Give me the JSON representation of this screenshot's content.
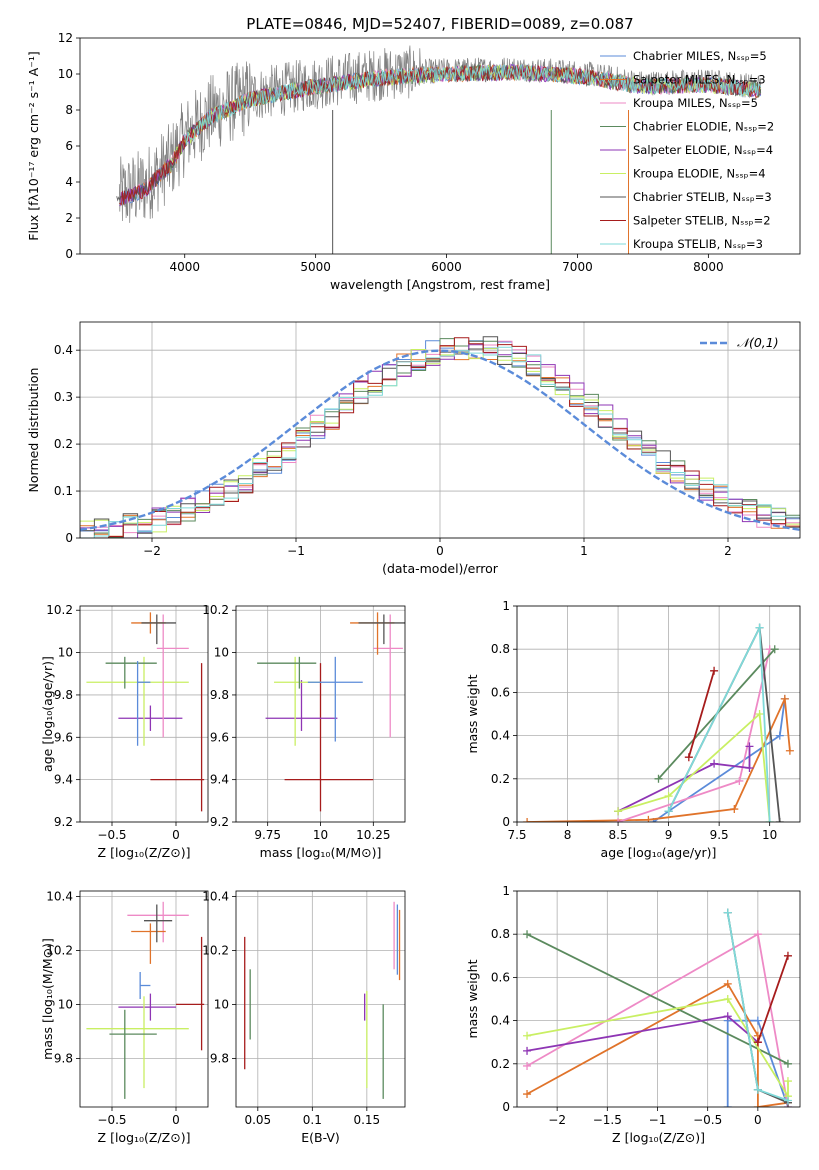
{
  "figure": {
    "title": "PLATE=0846, MJD=52407, FIBERID=0089, z=0.087",
    "series_colors": [
      "#5b8bd9",
      "#e0732a",
      "#ee8ac6",
      "#5b8a5e",
      "#8e35b4",
      "#c9ef63",
      "#555555",
      "#a61c1c",
      "#7fd9d9"
    ],
    "axis_labels": {
      "flux": "Flux [fλ10⁻¹⁷ erg cm⁻² s⁻¹ A⁻¹]",
      "wavelength": "wavelength [Angstrom, rest frame]",
      "normed": "Normed distribution",
      "resid": "(data-model)/error",
      "age": "age  [log₁₀(age/yr)]",
      "Z": "Z [log₁₀(Z/Z⊙)]",
      "mass": "mass [log₁₀(M/M⊙)]",
      "mass_weight": "mass weight",
      "ebv": "E(B-V)"
    }
  },
  "chart_data": [
    {
      "type": "line",
      "panel": "spectrum",
      "title": "PLATE=0846, MJD=52407, FIBERID=0089, z=0.087",
      "xlabel": "wavelength [Angstrom, rest frame]",
      "ylabel": "Flux [fλ10⁻¹⁷ erg cm⁻² s⁻¹ A⁻¹]",
      "xlim": [
        3200,
        8700
      ],
      "ylim": [
        0,
        12
      ],
      "xticks": [
        4000,
        5000,
        6000,
        7000,
        8000
      ],
      "yticks": [
        0,
        2,
        4,
        6,
        8,
        10,
        12
      ],
      "grid": false,
      "legend": "right",
      "continuum": {
        "x": [
          3500,
          3700,
          3900,
          4000,
          4200,
          4500,
          5000,
          5500,
          6000,
          6500,
          7000,
          7500,
          8000,
          8400
        ],
        "y": [
          3.2,
          3.8,
          5.2,
          6.5,
          7.8,
          8.8,
          9.5,
          10.0,
          10.2,
          10.3,
          10.1,
          9.5,
          9.6,
          9.3
        ]
      },
      "series": [
        {
          "name": "Chabrier MILES, N_SSP=5"
        },
        {
          "name": "Salpeter MILES, N_SSP=3"
        },
        {
          "name": "Kroupa MILES, N_SSP=5"
        },
        {
          "name": "Chabrier ELODIE, N_SSP=2"
        },
        {
          "name": "Salpeter ELODIE, N_SSP=4"
        },
        {
          "name": "Kroupa ELODIE, N_SSP=4"
        },
        {
          "name": "Chabrier STELIB, N_SSP=3"
        },
        {
          "name": "Salpeter STELIB, N_SSP=2"
        },
        {
          "name": "Kroupa STELIB, N_SSP=3"
        }
      ]
    },
    {
      "type": "histogram",
      "panel": "residuals",
      "xlabel": "(data-model)/error",
      "ylabel": "Normed distribution",
      "xlim": [
        -2.5,
        2.5
      ],
      "ylim": [
        0,
        0.46
      ],
      "xticks": [
        -2,
        -1,
        0,
        1,
        2
      ],
      "yticks": [
        0.0,
        0.1,
        0.2,
        0.3,
        0.4
      ],
      "grid": true,
      "legend": "top-right",
      "reference_curve": {
        "name": "𝒩(0,1)",
        "mean": 0,
        "sigma": 1
      },
      "bin_width": 0.1,
      "bin_peak_shift": 0.2
    },
    {
      "type": "errorbar",
      "panel": "age_vs_Z",
      "xlabel": "Z [log₁₀(Z/Z⊙)]",
      "ylabel": "age  [log₁₀(age/yr)]",
      "xlim": [
        -0.75,
        0.25
      ],
      "ylim": [
        9.2,
        10.22
      ],
      "xticks": [
        -0.5,
        0.0
      ],
      "yticks": [
        9.2,
        9.4,
        9.6,
        9.8,
        10.0,
        10.2
      ],
      "points": [
        {
          "x": 0.2,
          "y": 9.4,
          "xerr": [
            0.4,
            0.02
          ],
          "yerr": [
            0.15,
            0.55
          ],
          "c": 7
        },
        {
          "x": -0.2,
          "y": 9.69,
          "xerr": [
            0.25,
            0.25
          ],
          "yerr": [
            0.06,
            0.06
          ],
          "c": 4
        },
        {
          "x": -0.25,
          "y": 9.86,
          "xerr": [
            0.45,
            0.35
          ],
          "yerr": [
            0.3,
            0.12
          ],
          "c": 5
        },
        {
          "x": -0.4,
          "y": 9.95,
          "xerr": [
            0.15,
            0.25
          ],
          "yerr": [
            0.12,
            0.03
          ],
          "c": 3
        },
        {
          "x": -0.3,
          "y": 9.86,
          "xerr": [
            0.0,
            0.1
          ],
          "yerr": [
            0.3,
            0.1
          ],
          "c": 0
        },
        {
          "x": -0.1,
          "y": 10.02,
          "xerr": [
            0.05,
            0.2
          ],
          "yerr": [
            0.42,
            0.16
          ],
          "c": 2
        },
        {
          "x": -0.2,
          "y": 10.14,
          "xerr": [
            0.15,
            0.12
          ],
          "yerr": [
            0.05,
            0.05
          ],
          "c": 1
        },
        {
          "x": -0.15,
          "y": 10.14,
          "xerr": [
            0.12,
            0.15
          ],
          "yerr": [
            0.1,
            0.04
          ],
          "c": 6
        }
      ]
    },
    {
      "type": "errorbar",
      "panel": "age_vs_mass",
      "xlabel": "mass [log₁₀(M/M⊙)]",
      "ylabel": "",
      "xlim": [
        9.6,
        10.4
      ],
      "ylim": [
        9.2,
        10.22
      ],
      "xticks": [
        9.75,
        10.0,
        10.25
      ],
      "yticks": [
        9.2,
        9.4,
        9.6,
        9.8,
        10.0,
        10.2
      ],
      "points": [
        {
          "x": 10.0,
          "y": 9.4,
          "xerr": [
            0.17,
            0.25
          ],
          "yerr": [
            0.15,
            0.55
          ],
          "c": 7
        },
        {
          "x": 9.91,
          "y": 9.69,
          "xerr": [
            0.17,
            0.17
          ],
          "yerr": [
            0.06,
            0.18
          ],
          "c": 4
        },
        {
          "x": 9.88,
          "y": 9.86,
          "xerr": [
            0.1,
            0.12
          ],
          "yerr": [
            0.3,
            0.12
          ],
          "c": 5
        },
        {
          "x": 9.9,
          "y": 9.95,
          "xerr": [
            0.2,
            0.08
          ],
          "yerr": [
            0.12,
            0.03
          ],
          "c": 3
        },
        {
          "x": 10.07,
          "y": 9.86,
          "xerr": [
            0.13,
            0.13
          ],
          "yerr": [
            0.28,
            0.12
          ],
          "c": 0
        },
        {
          "x": 10.33,
          "y": 10.02,
          "xerr": [
            0.08,
            0.06
          ],
          "yerr": [
            0.42,
            0.16
          ],
          "c": 2
        },
        {
          "x": 10.27,
          "y": 10.14,
          "xerr": [
            0.13,
            0.08
          ],
          "yerr": [
            0.15,
            0.05
          ],
          "c": 1
        },
        {
          "x": 10.3,
          "y": 10.14,
          "xerr": [
            0.12,
            0.1
          ],
          "yerr": [
            0.1,
            0.04
          ],
          "c": 6
        }
      ]
    },
    {
      "type": "line",
      "panel": "massweight_vs_age",
      "xlabel": "age  [log₁₀(age/yr)]",
      "ylabel": "mass weight",
      "xlim": [
        7.5,
        10.3
      ],
      "ylim": [
        0,
        1.0
      ],
      "xticks": [
        7.5,
        8.0,
        8.5,
        9.0,
        9.5,
        10.0
      ],
      "yticks": [
        0.0,
        0.2,
        0.4,
        0.6,
        0.8,
        1.0
      ],
      "grid": true,
      "series": [
        {
          "c": 0,
          "x": [
            8.85,
            9.0,
            10.1,
            10.15
          ],
          "y": [
            0.0,
            0.05,
            0.4,
            0.57
          ]
        },
        {
          "c": 1,
          "x": [
            7.6,
            8.8,
            9.65,
            10.15,
            10.2
          ],
          "y": [
            0.0,
            0.01,
            0.06,
            0.57,
            0.33
          ]
        },
        {
          "c": 2,
          "x": [
            8.5,
            9.7,
            10.0
          ],
          "y": [
            0.0,
            0.19,
            0.8
          ]
        },
        {
          "c": 3,
          "x": [
            8.9,
            10.05
          ],
          "y": [
            0.2,
            0.8
          ]
        },
        {
          "c": 4,
          "x": [
            8.5,
            9.45,
            9.8,
            9.8
          ],
          "y": [
            0.05,
            0.27,
            0.25,
            0.35
          ]
        },
        {
          "c": 5,
          "x": [
            8.5,
            9.0,
            9.9,
            10.0
          ],
          "y": [
            0.05,
            0.12,
            0.5,
            0.0
          ]
        },
        {
          "c": 6,
          "x": [
            9.0,
            9.9,
            10.1
          ],
          "y": [
            0.05,
            0.9,
            0.0
          ]
        },
        {
          "c": 7,
          "x": [
            9.2,
            9.45
          ],
          "y": [
            0.3,
            0.7
          ]
        },
        {
          "c": 8,
          "x": [
            9.0,
            9.9,
            10.0
          ],
          "y": [
            0.05,
            0.9,
            0.0
          ]
        }
      ]
    },
    {
      "type": "errorbar",
      "panel": "mass_vs_Z",
      "xlabel": "Z [log₁₀(Z/Z⊙)]",
      "ylabel": "mass [log₁₀(M/M⊙)]",
      "xlim": [
        -0.75,
        0.25
      ],
      "ylim": [
        9.62,
        10.42
      ],
      "xticks": [
        -0.5,
        0.0
      ],
      "yticks": [
        9.8,
        10.0,
        10.2,
        10.4
      ],
      "points": [
        {
          "x": 0.2,
          "y": 10.0,
          "xerr": [
            0.2,
            0.02
          ],
          "yerr": [
            0.17,
            0.25
          ],
          "c": 7
        },
        {
          "x": -0.2,
          "y": 9.99,
          "xerr": [
            0.25,
            0.2
          ],
          "yerr": [
            0.05,
            0.05
          ],
          "c": 4
        },
        {
          "x": -0.25,
          "y": 9.91,
          "xerr": [
            0.45,
            0.35
          ],
          "yerr": [
            0.22,
            0.12
          ],
          "c": 5
        },
        {
          "x": -0.4,
          "y": 9.89,
          "xerr": [
            0.12,
            0.25
          ],
          "yerr": [
            0.24,
            0.09
          ],
          "c": 3
        },
        {
          "x": -0.28,
          "y": 10.07,
          "xerr": [
            0.0,
            0.08
          ],
          "yerr": [
            0.05,
            0.05
          ],
          "c": 0
        },
        {
          "x": -0.1,
          "y": 10.33,
          "xerr": [
            0.28,
            0.2
          ],
          "yerr": [
            0.1,
            0.05
          ],
          "c": 2
        },
        {
          "x": -0.2,
          "y": 10.27,
          "xerr": [
            0.15,
            0.12
          ],
          "yerr": [
            0.12,
            0.03
          ],
          "c": 1
        },
        {
          "x": -0.15,
          "y": 10.31,
          "xerr": [
            0.1,
            0.12
          ],
          "yerr": [
            0.08,
            0.06
          ],
          "c": 6
        }
      ]
    },
    {
      "type": "errorbar",
      "panel": "mass_vs_ebv",
      "xlabel": "E(B-V)",
      "ylabel": "",
      "xlim": [
        0.03,
        0.185
      ],
      "ylim": [
        9.62,
        10.42
      ],
      "xticks": [
        0.05,
        0.1,
        0.15
      ],
      "yticks": [
        9.8,
        10.0,
        10.2,
        10.4
      ],
      "points": [
        {
          "x": 0.038,
          "y": 10.0,
          "xerr": [
            0,
            0
          ],
          "yerr": [
            0.24,
            0.25
          ],
          "c": 7
        },
        {
          "x": 0.043,
          "y": 9.99,
          "xerr": [
            0,
            0
          ],
          "yerr": [
            0.12,
            0.14
          ],
          "c": 3
        },
        {
          "x": 0.148,
          "y": 9.99,
          "xerr": [
            0,
            0
          ],
          "yerr": [
            0.05,
            0.05
          ],
          "c": 4
        },
        {
          "x": 0.15,
          "y": 9.91,
          "xerr": [
            0,
            0
          ],
          "yerr": [
            0.22,
            0.14
          ],
          "c": 5
        },
        {
          "x": 0.165,
          "y": 9.89,
          "xerr": [
            0,
            0
          ],
          "yerr": [
            0.24,
            0.11
          ],
          "c": 3
        },
        {
          "x": 0.175,
          "y": 10.33,
          "xerr": [
            0,
            0
          ],
          "yerr": [
            0.2,
            0.05
          ],
          "c": 2
        },
        {
          "x": 0.18,
          "y": 10.27,
          "xerr": [
            0,
            0
          ],
          "yerr": [
            0.18,
            0.08
          ],
          "c": 1
        },
        {
          "x": 0.178,
          "y": 10.31,
          "xerr": [
            0,
            0
          ],
          "yerr": [
            0.2,
            0.06
          ],
          "c": 0
        }
      ]
    },
    {
      "type": "line",
      "panel": "massweight_vs_Z",
      "xlabel": "Z [log₁₀(Z/Z⊙)]",
      "ylabel": "mass weight",
      "xlim": [
        -2.4,
        0.42
      ],
      "ylim": [
        0,
        1.0
      ],
      "xticks": [
        -2.0,
        -1.5,
        -1.0,
        -0.5,
        0.0
      ],
      "yticks": [
        0.0,
        0.2,
        0.4,
        0.6,
        0.8,
        1.0
      ],
      "grid": true,
      "series": [
        {
          "c": 0,
          "x": [
            -0.3,
            -0.3,
            0.0,
            0.3
          ],
          "y": [
            0.0,
            0.4,
            0.4,
            0.0
          ]
        },
        {
          "c": 1,
          "x": [
            -2.3,
            -0.3,
            0.0,
            0.0,
            0.3
          ],
          "y": [
            0.06,
            0.57,
            0.33,
            0.0,
            0.02
          ]
        },
        {
          "c": 2,
          "x": [
            -2.3,
            0.0,
            0.3
          ],
          "y": [
            0.19,
            0.8,
            0.0
          ]
        },
        {
          "c": 3,
          "x": [
            -2.3,
            0.3
          ],
          "y": [
            0.8,
            0.2
          ]
        },
        {
          "c": 4,
          "x": [
            -2.3,
            -0.3,
            0.0
          ],
          "y": [
            0.26,
            0.42,
            0.3
          ]
        },
        {
          "c": 5,
          "x": [
            -2.3,
            -0.3,
            0.3,
            0.3
          ],
          "y": [
            0.33,
            0.5,
            0.05,
            0.12
          ]
        },
        {
          "c": 6,
          "x": [
            -0.3,
            0.0,
            0.3
          ],
          "y": [
            0.9,
            0.08,
            0.02
          ]
        },
        {
          "c": 7,
          "x": [
            0.0,
            0.3
          ],
          "y": [
            0.3,
            0.7
          ]
        },
        {
          "c": 8,
          "x": [
            -0.3,
            0.0,
            0.3
          ],
          "y": [
            0.9,
            0.08,
            0.03
          ]
        }
      ]
    }
  ]
}
